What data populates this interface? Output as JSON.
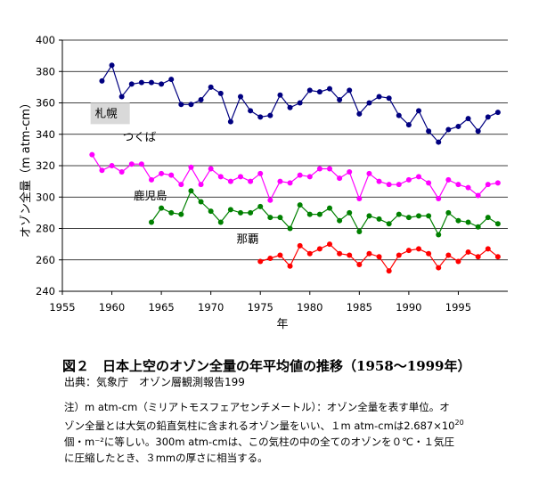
{
  "chart_data": {
    "type": "line",
    "xlabel": "年",
    "ylabel": "オゾン全量（m atm-cm）",
    "xlim": [
      1955,
      2000
    ],
    "ylim": [
      240,
      400
    ],
    "xticks": [
      1955,
      1960,
      1965,
      1970,
      1975,
      1980,
      1985,
      1990,
      1995
    ],
    "yticks": [
      240,
      260,
      280,
      300,
      320,
      340,
      360,
      380,
      400
    ],
    "grid": "horizontal",
    "series": [
      {
        "name": "札幌",
        "color": "#000080",
        "x": [
          1959,
          1960,
          1961,
          1962,
          1963,
          1964,
          1965,
          1966,
          1967,
          1968,
          1969,
          1970,
          1971,
          1972,
          1973,
          1974,
          1975,
          1976,
          1977,
          1978,
          1979,
          1980,
          1981,
          1982,
          1983,
          1984,
          1985,
          1986,
          1987,
          1988,
          1989,
          1990,
          1991,
          1992,
          1993,
          1994,
          1995,
          1996,
          1997,
          1998,
          1999
        ],
        "y": [
          374,
          384,
          364,
          372,
          373,
          373,
          372,
          375,
          359,
          359,
          362,
          370,
          366,
          348,
          364,
          355,
          351,
          352,
          365,
          357,
          360,
          368,
          367,
          369,
          362,
          368,
          353,
          360,
          364,
          363,
          352,
          346,
          355,
          342,
          335,
          343,
          345,
          350,
          342,
          351,
          354
        ]
      },
      {
        "name": "つくば",
        "color": "#ff00ff",
        "x": [
          1958,
          1959,
          1960,
          1961,
          1962,
          1963,
          1964,
          1965,
          1966,
          1967,
          1968,
          1969,
          1970,
          1971,
          1972,
          1973,
          1974,
          1975,
          1976,
          1977,
          1978,
          1979,
          1980,
          1981,
          1982,
          1983,
          1984,
          1985,
          1986,
          1987,
          1988,
          1989,
          1990,
          1991,
          1992,
          1993,
          1994,
          1995,
          1996,
          1997,
          1998,
          1999
        ],
        "y": [
          327,
          317,
          320,
          316,
          321,
          321,
          311,
          315,
          314,
          308,
          319,
          308,
          318,
          313,
          310,
          313,
          310,
          315,
          298,
          310,
          309,
          314,
          313,
          318,
          318,
          312,
          316,
          299,
          315,
          310,
          308,
          308,
          311,
          313,
          309,
          299,
          311,
          308,
          306,
          301,
          308,
          309
        ]
      },
      {
        "name": "鹿児島",
        "color": "#008000",
        "x": [
          1964,
          1965,
          1966,
          1967,
          1968,
          1969,
          1970,
          1971,
          1972,
          1973,
          1974,
          1975,
          1976,
          1977,
          1978,
          1979,
          1980,
          1981,
          1982,
          1983,
          1984,
          1985,
          1986,
          1987,
          1988,
          1989,
          1990,
          1991,
          1992,
          1993,
          1994,
          1995,
          1996,
          1997,
          1998,
          1999
        ],
        "y": [
          284,
          293,
          290,
          289,
          304,
          297,
          291,
          284,
          292,
          290,
          290,
          294,
          287,
          287,
          280,
          295,
          289,
          289,
          293,
          285,
          290,
          278,
          288,
          286,
          283,
          289,
          287,
          288,
          288,
          276,
          290,
          285,
          284,
          281,
          287,
          283
        ]
      },
      {
        "name": "那覇",
        "color": "#ff0000",
        "x": [
          1975,
          1976,
          1977,
          1978,
          1979,
          1980,
          1981,
          1982,
          1983,
          1984,
          1985,
          1986,
          1987,
          1988,
          1989,
          1990,
          1991,
          1992,
          1993,
          1994,
          1995,
          1996,
          1997,
          1998,
          1999
        ],
        "y": [
          259,
          261,
          263,
          256,
          269,
          264,
          267,
          270,
          264,
          263,
          257,
          264,
          262,
          253,
          263,
          266,
          267,
          264,
          255,
          263,
          259,
          265,
          262,
          267,
          262
        ]
      }
    ]
  },
  "caption": {
    "title": "図２　日本上空のオゾン全量の年平均値の推移（1958〜1999年）",
    "source": "出典：気象庁　オゾン層観測報告199"
  },
  "note": {
    "line1": "注）m atm-cm（ミリアトモスフェアセンチメートル）：オゾン全量を表す単位。オ",
    "line2a": "ゾン全量とは大気の鉛直気柱に含まれるオゾン量をいい、１m atm-cmは2.687×10",
    "line2sup": "20",
    "line3": "個・m⁻²に等しい。300m atm-cmは、この気柱の中の全てのオゾンを０℃・１気圧",
    "line4": "に圧縮したとき、３mmの厚さに相当する。"
  }
}
